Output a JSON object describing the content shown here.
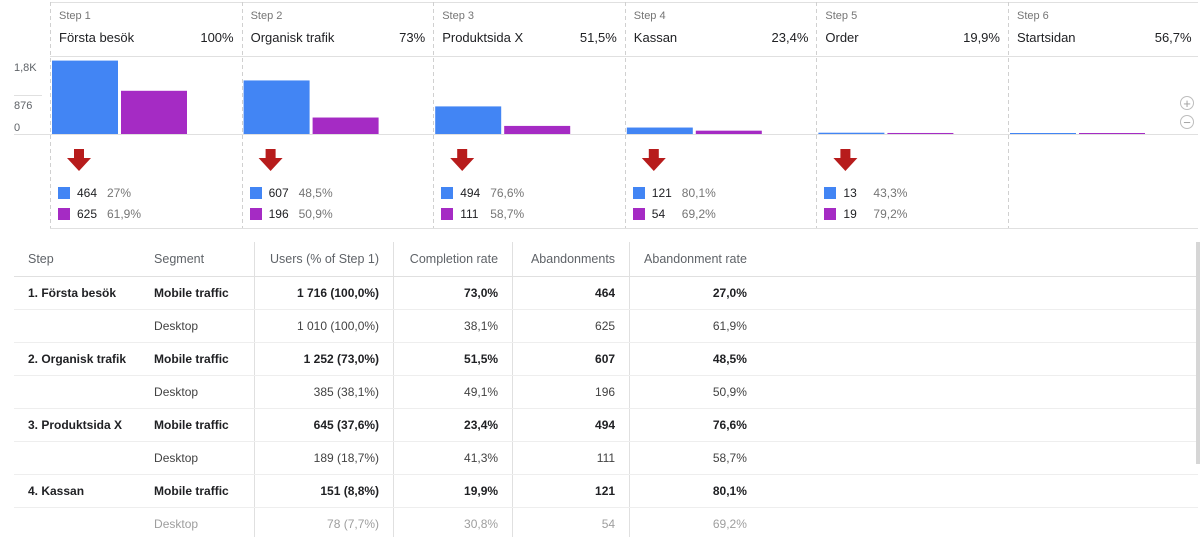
{
  "chart_data": {
    "type": "bar",
    "yticks": [
      "1,8K",
      "876",
      "0"
    ],
    "ylim": [
      0,
      1800
    ],
    "steps": [
      {
        "step": "Step 1",
        "name": "Första besök",
        "pct": "100%",
        "mobile": 1716,
        "desktop": 1010,
        "abandon_mobile": "464",
        "abandon_mobile_pct": "27%",
        "abandon_desktop": "625",
        "abandon_desktop_pct": "61,9%"
      },
      {
        "step": "Step 2",
        "name": "Organisk trafik",
        "pct": "73%",
        "mobile": 1252,
        "desktop": 385,
        "abandon_mobile": "607",
        "abandon_mobile_pct": "48,5%",
        "abandon_desktop": "196",
        "abandon_desktop_pct": "50,9%"
      },
      {
        "step": "Step 3",
        "name": "Produktsida X",
        "pct": "51,5%",
        "mobile": 645,
        "desktop": 189,
        "abandon_mobile": "494",
        "abandon_mobile_pct": "76,6%",
        "abandon_desktop": "111",
        "abandon_desktop_pct": "58,7%"
      },
      {
        "step": "Step 4",
        "name": "Kassan",
        "pct": "23,4%",
        "mobile": 151,
        "desktop": 78,
        "abandon_mobile": "121",
        "abandon_mobile_pct": "80,1%",
        "abandon_desktop": "54",
        "abandon_desktop_pct": "69,2%"
      },
      {
        "step": "Step 5",
        "name": "Order",
        "pct": "19,9%",
        "mobile": 30,
        "desktop": 24,
        "abandon_mobile": "13",
        "abandon_mobile_pct": "43,3%",
        "abandon_desktop": "19",
        "abandon_desktop_pct": "79,2%"
      },
      {
        "step": "Step 6",
        "name": "Startsidan",
        "pct": "56,7%",
        "mobile": 17,
        "desktop": 5
      }
    ]
  },
  "colors": {
    "mobile": "#4285f4",
    "desktop": "#a52bc4",
    "arrow": "#b71c1c"
  },
  "zoom": {
    "in_icon": "plus-circle-icon",
    "out_icon": "minus-circle-icon"
  },
  "table": {
    "headers": {
      "step": "Step",
      "segment": "Segment",
      "users": "Users (% of Step 1)",
      "completion": "Completion rate",
      "abandonments": "Abandonments",
      "abandonment_rate": "Abandonment rate"
    },
    "rows": [
      {
        "step": "1. Första besök",
        "segment": "Mobile traffic",
        "users": "1 716 (100,0%)",
        "completion": "73,0%",
        "abandonments": "464",
        "rate": "27,0%",
        "bold": true
      },
      {
        "step": "",
        "segment": "Desktop",
        "users": "1 010 (100,0%)",
        "completion": "38,1%",
        "abandonments": "625",
        "rate": "61,9%",
        "bold": false
      },
      {
        "step": "2. Organisk trafik",
        "segment": "Mobile traffic",
        "users": "1 252 (73,0%)",
        "completion": "51,5%",
        "abandonments": "607",
        "rate": "48,5%",
        "bold": true
      },
      {
        "step": "",
        "segment": "Desktop",
        "users": "385 (38,1%)",
        "completion": "49,1%",
        "abandonments": "196",
        "rate": "50,9%",
        "bold": false
      },
      {
        "step": "3. Produktsida X",
        "segment": "Mobile traffic",
        "users": "645 (37,6%)",
        "completion": "23,4%",
        "abandonments": "494",
        "rate": "76,6%",
        "bold": true
      },
      {
        "step": "",
        "segment": "Desktop",
        "users": "189 (18,7%)",
        "completion": "41,3%",
        "abandonments": "111",
        "rate": "58,7%",
        "bold": false
      },
      {
        "step": "4. Kassan",
        "segment": "Mobile traffic",
        "users": "151 (8,8%)",
        "completion": "19,9%",
        "abandonments": "121",
        "rate": "80,1%",
        "bold": true
      },
      {
        "step": "",
        "segment": "Desktop",
        "users": "78 (7,7%)",
        "completion": "30,8%",
        "abandonments": "54",
        "rate": "69,2%",
        "bold": false,
        "faded": true
      }
    ]
  }
}
